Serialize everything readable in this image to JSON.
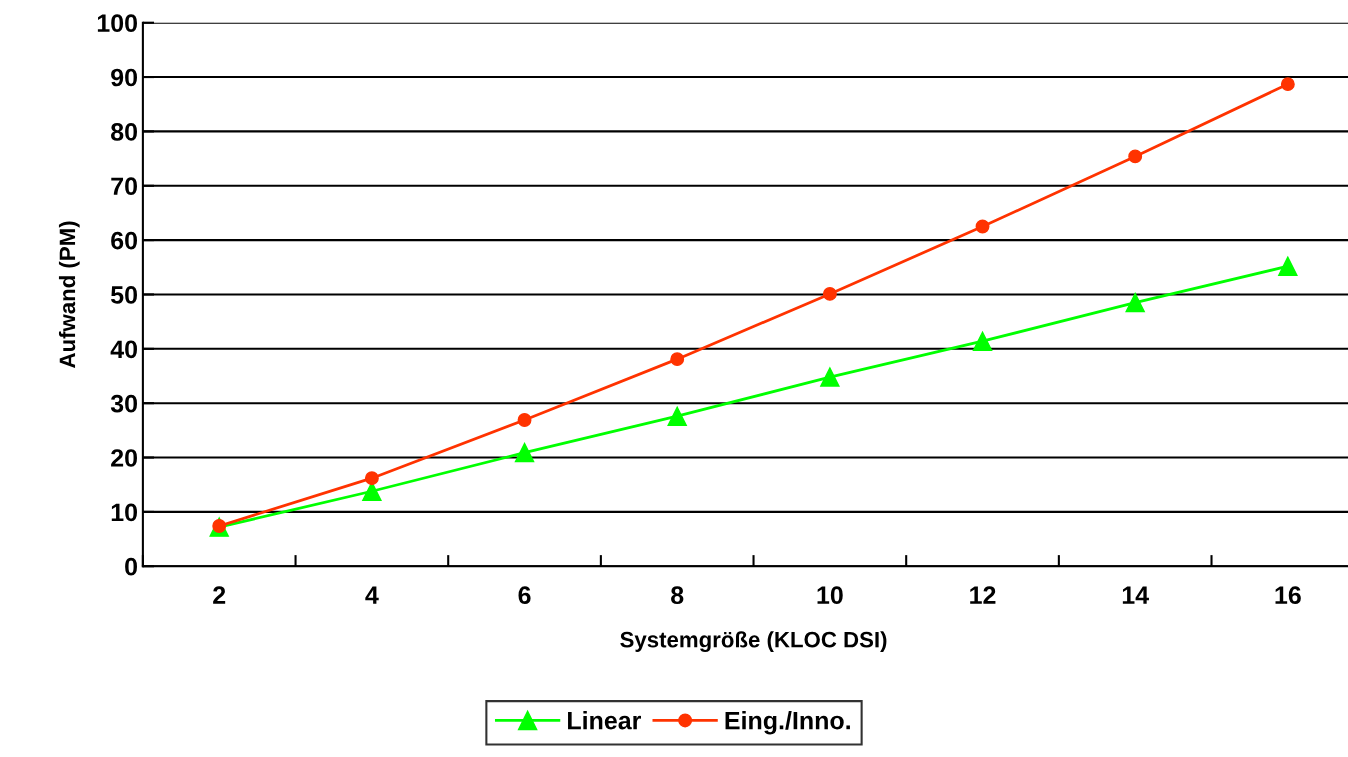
{
  "chart_data": {
    "type": "line",
    "xlabel": "Systemgröße (KLOC DSI)",
    "ylabel": "Aufwand (PM)",
    "categories": [
      "2",
      "4",
      "6",
      "8",
      "10",
      "12",
      "14",
      "16"
    ],
    "series": [
      {
        "name": "Linear",
        "color": "#00ff00",
        "marker": "triangle",
        "values": [
          7.2,
          13.8,
          20.9,
          27.6,
          34.8,
          41.4,
          48.5,
          55.2
        ]
      },
      {
        "name": "Eing./Inno.",
        "color": "#ff3300",
        "marker": "circle",
        "values": [
          7.4,
          16.2,
          26.9,
          38.1,
          50.1,
          62.5,
          75.4,
          88.7
        ]
      }
    ],
    "ylim": [
      0,
      100
    ],
    "yticks": [
      0,
      10,
      20,
      30,
      40,
      50,
      60,
      70,
      80,
      90,
      100
    ],
    "grid": "y",
    "legend": "bottom",
    "line_style": "solid"
  }
}
